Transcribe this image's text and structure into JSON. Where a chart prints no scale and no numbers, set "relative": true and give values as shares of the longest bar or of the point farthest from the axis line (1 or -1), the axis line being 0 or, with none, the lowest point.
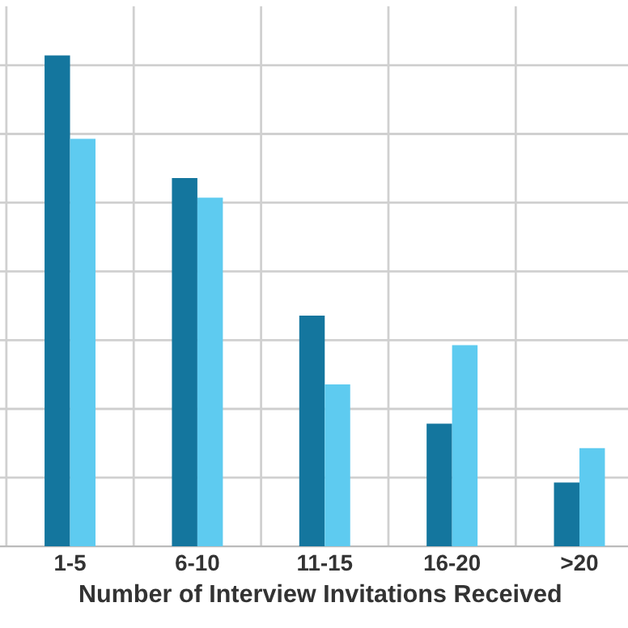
{
  "chart_data": {
    "type": "bar",
    "relative": true,
    "xlabel": "Number of Interview Invitations Received",
    "categories": [
      "1-5",
      "6-10",
      "11-15",
      "16-20",
      ">20"
    ],
    "series": [
      {
        "color": "#14769e",
        "values": [
          1,
          0.75,
          0.47,
          0.25,
          0.13
        ]
      },
      {
        "color": "#5ecbf0",
        "values": [
          0.83,
          0.71,
          0.33,
          0.41,
          0.2
        ]
      }
    ],
    "grid": true
  }
}
